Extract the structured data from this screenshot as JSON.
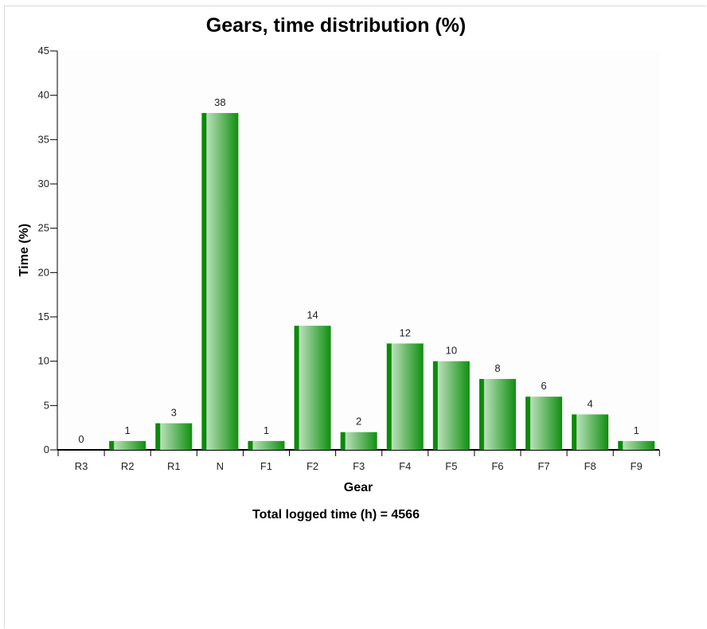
{
  "chart_data": {
    "type": "bar",
    "title": "Gears, time distribution (%)",
    "xlabel": "Gear",
    "ylabel": "Time (%)",
    "categories": [
      "R3",
      "R2",
      "R1",
      "N",
      "F1",
      "F2",
      "F3",
      "F4",
      "F5",
      "F6",
      "F7",
      "F8",
      "F9"
    ],
    "values": [
      0,
      1,
      3,
      38,
      1,
      14,
      2,
      12,
      10,
      8,
      6,
      4,
      1
    ],
    "ylim": [
      0,
      45
    ],
    "yticks": [
      0,
      5,
      10,
      15,
      20,
      25,
      30,
      35,
      40,
      45
    ],
    "grid": false,
    "bar_color": "#008000",
    "bar_highlight_color": "#b9e0b9"
  },
  "footer": {
    "total_text": "Total logged time (h) = 4566"
  }
}
